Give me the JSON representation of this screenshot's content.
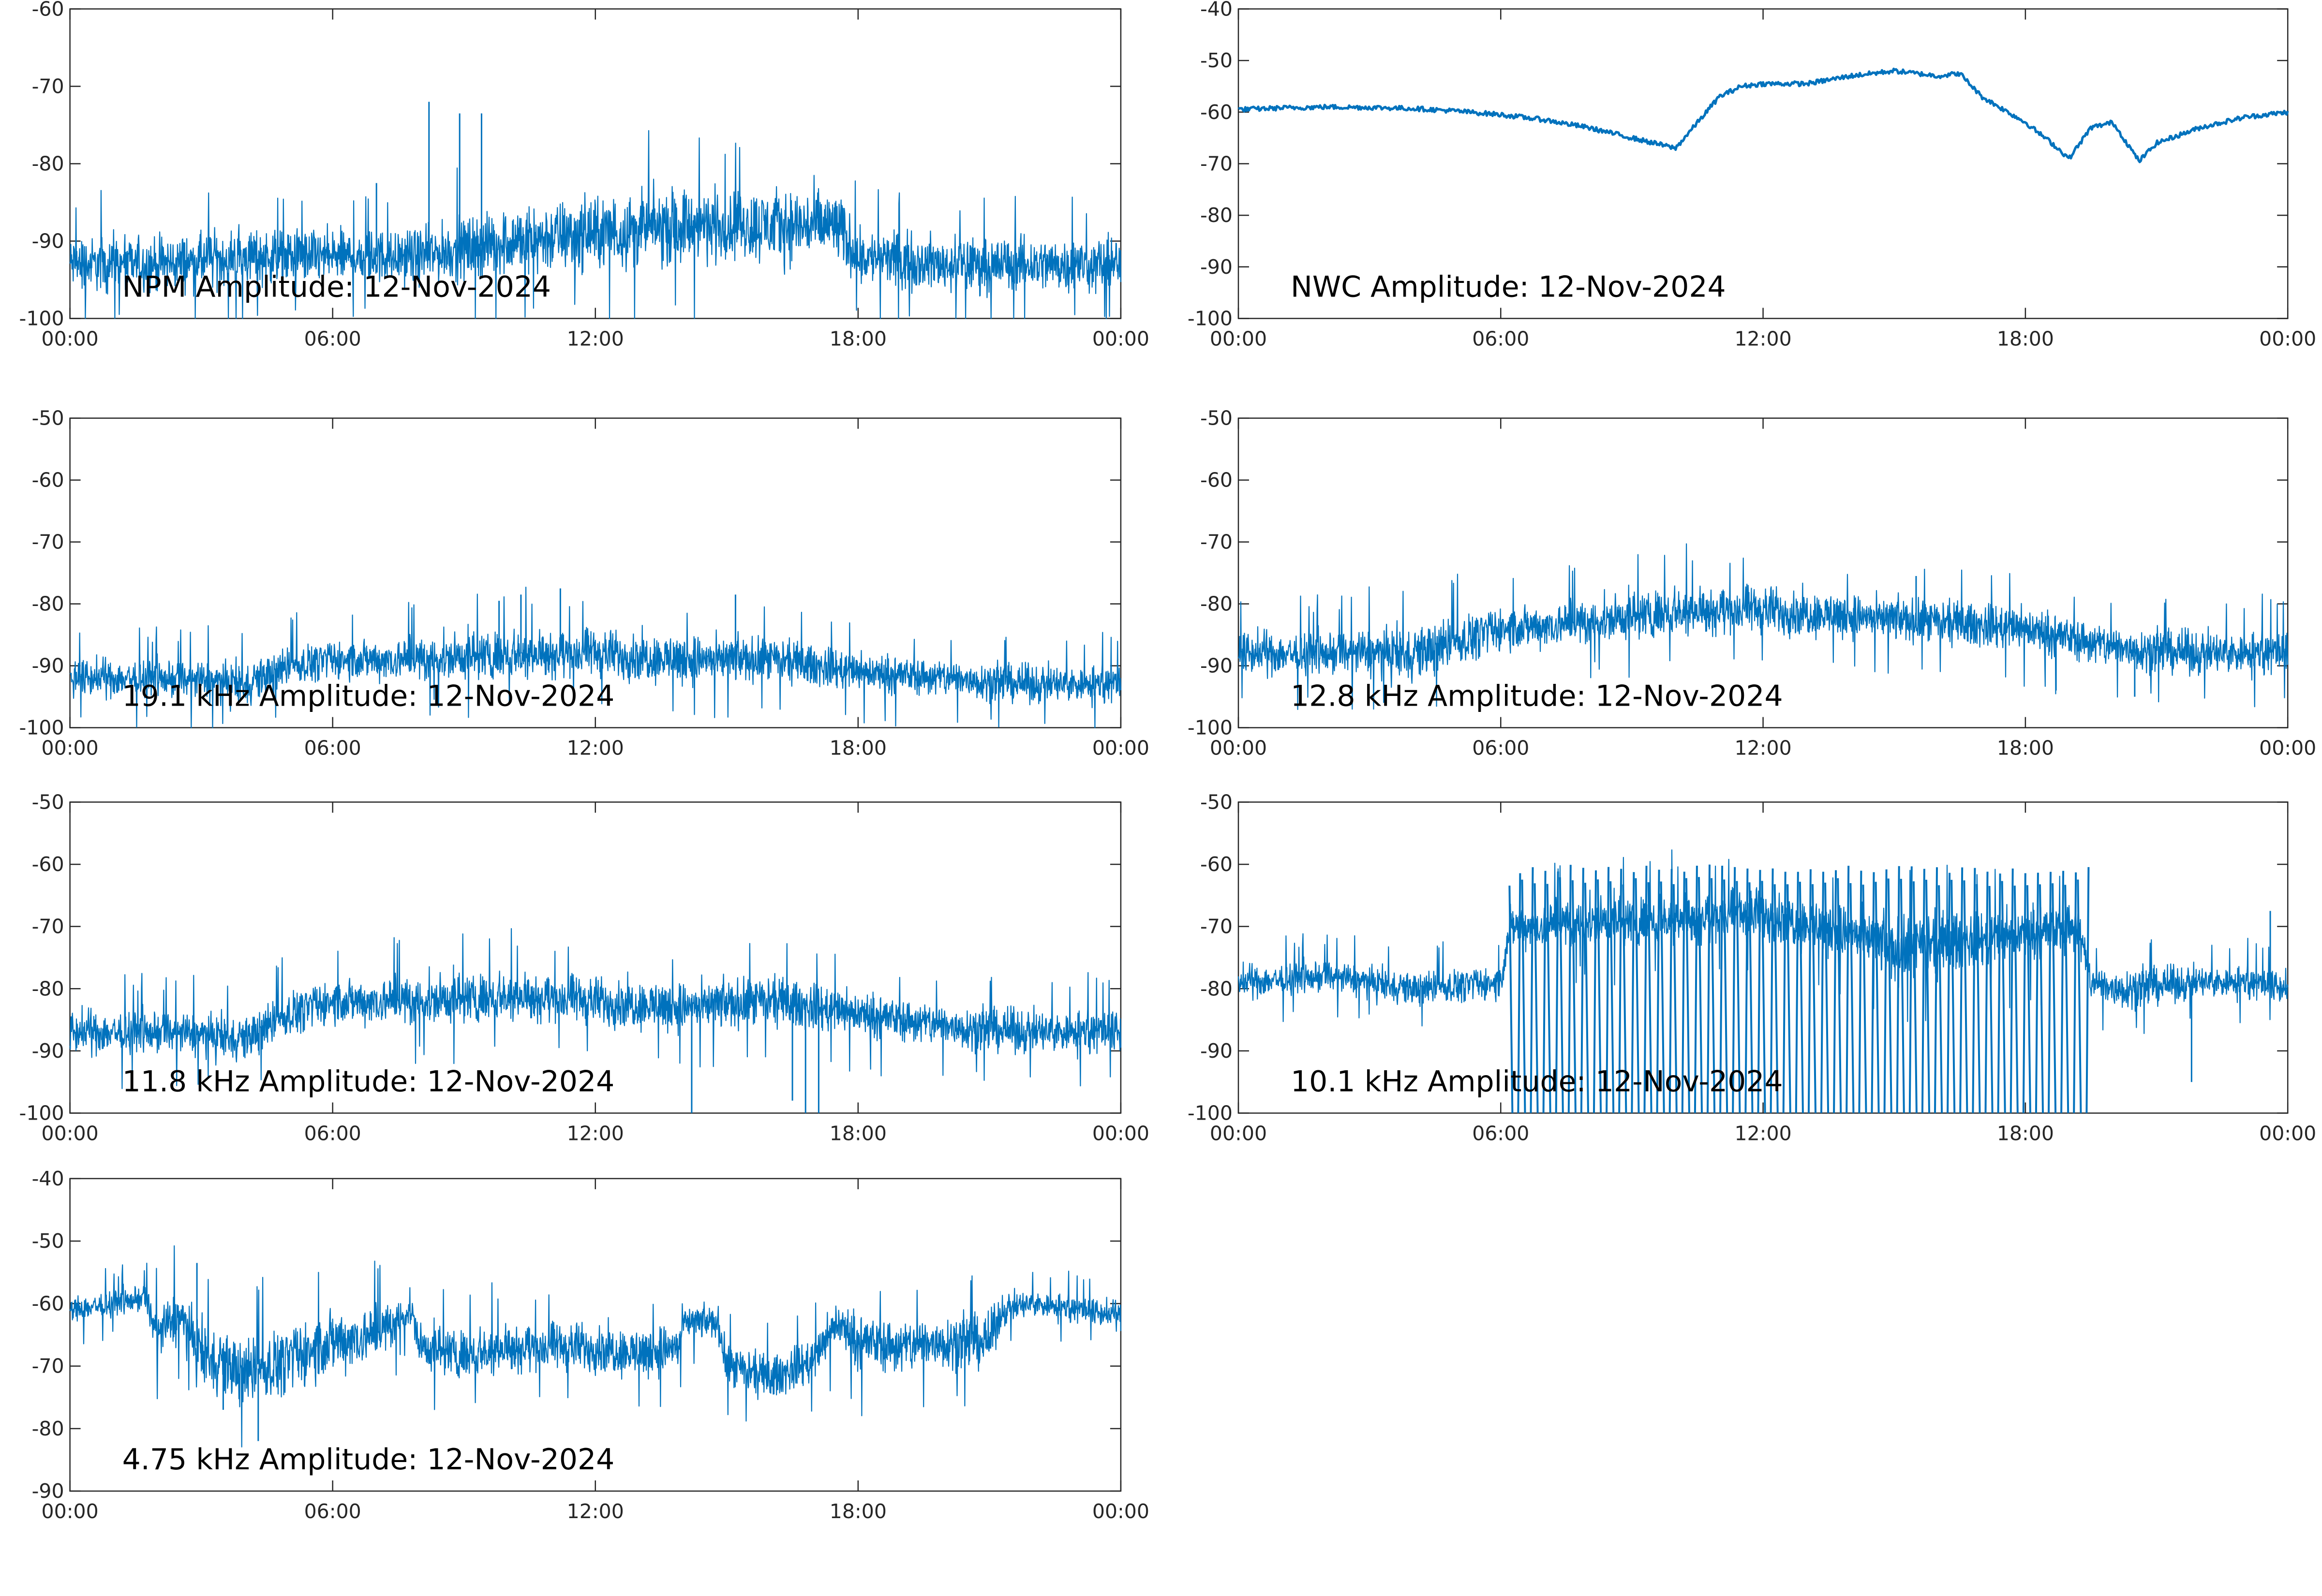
{
  "figure": {
    "series_color": "#0072BD"
  },
  "chart_data": [
    {
      "type": "line",
      "panel_label": "NPM Amplitude: 12-Nov-2024",
      "x_ticks": [
        "00:00",
        "06:00",
        "12:00",
        "18:00",
        "00:00"
      ],
      "y_ticks": [
        "-60",
        "-70",
        "-80",
        "-90",
        "-100"
      ],
      "xlim": [
        0,
        24
      ],
      "ylim": [
        -100,
        -60
      ],
      "x_unit": "hours",
      "noise": "heavy",
      "x": [
        0,
        2,
        4,
        6,
        7,
        8,
        9,
        10,
        12,
        14,
        16,
        17.5,
        18,
        20,
        22,
        24
      ],
      "y_center": [
        -93,
        -93,
        -92,
        -92,
        -92,
        -92,
        -91,
        -90,
        -89,
        -88,
        -88,
        -88,
        -92,
        -93,
        -93,
        -93
      ],
      "y_spread": [
        4,
        4,
        4,
        4,
        4,
        4,
        4.5,
        5,
        5.5,
        5.5,
        5.5,
        5.5,
        4,
        4,
        4,
        4
      ],
      "spikes": [
        [
          8.2,
          -72
        ],
        [
          8.9,
          -73.5
        ],
        [
          9.4,
          -73.5
        ],
        [
          7.0,
          -82.5
        ]
      ]
    },
    {
      "type": "line",
      "panel_label": "NWC Amplitude: 12-Nov-2024",
      "x_ticks": [
        "00:00",
        "06:00",
        "12:00",
        "18:00",
        "00:00"
      ],
      "y_ticks": [
        "-40",
        "-50",
        "-60",
        "-70",
        "-80",
        "-90",
        "-100"
      ],
      "xlim": [
        0,
        24
      ],
      "ylim": [
        -100,
        -40
      ],
      "x_unit": "hours",
      "noise": "light",
      "x": [
        0,
        1,
        2,
        3,
        4,
        5,
        6,
        7,
        8,
        9,
        9.5,
        10,
        10.5,
        11,
        11.5,
        12,
        13,
        14,
        15,
        16,
        16.5,
        17,
        18,
        18.6,
        19,
        19.5,
        20,
        20.6,
        21,
        22,
        23,
        24
      ],
      "y_center": [
        -59.5,
        -59.2,
        -59,
        -59.1,
        -59.3,
        -59.8,
        -60.5,
        -61.5,
        -63,
        -65,
        -66,
        -67,
        -62,
        -57,
        -55,
        -54.5,
        -54.5,
        -53,
        -52,
        -53,
        -52.5,
        -57,
        -62,
        -66,
        -69,
        -63,
        -62,
        -69.5,
        -66,
        -63,
        -61,
        -60
      ]
    },
    {
      "type": "line",
      "panel_label": "19.1 kHz Amplitude: 12-Nov-2024",
      "x_ticks": [
        "00:00",
        "06:00",
        "12:00",
        "18:00",
        "00:00"
      ],
      "y_ticks": [
        "-50",
        "-60",
        "-70",
        "-80",
        "-90",
        "-100"
      ],
      "xlim": [
        0,
        24
      ],
      "ylim": [
        -100,
        -50
      ],
      "x_unit": "hours",
      "noise": "heavy",
      "x": [
        0,
        2,
        4,
        5,
        6,
        8,
        10,
        12,
        14,
        16,
        18,
        20,
        22,
        24
      ],
      "y_center": [
        -92,
        -92,
        -93,
        -90,
        -89,
        -89,
        -88,
        -88,
        -89,
        -89,
        -91,
        -92,
        -93,
        -93
      ],
      "y_spread": [
        3.5,
        3.5,
        4,
        3.5,
        3.5,
        4,
        4.5,
        4.5,
        4.5,
        4,
        3.5,
        3.5,
        3.5,
        3.5
      ],
      "spikes": [
        [
          10.3,
          -78.5
        ],
        [
          11.2,
          -77.5
        ],
        [
          15.2,
          -78.5
        ],
        [
          9.8,
          -79.5
        ]
      ]
    },
    {
      "type": "line",
      "panel_label": "12.8 kHz Amplitude: 12-Nov-2024",
      "x_ticks": [
        "00:00",
        "06:00",
        "12:00",
        "18:00",
        "00:00"
      ],
      "y_ticks": [
        "-50",
        "-60",
        "-70",
        "-80",
        "-90",
        "-100"
      ],
      "xlim": [
        0,
        24
      ],
      "ylim": [
        -100,
        -50
      ],
      "x_unit": "hours",
      "noise": "heavy",
      "x": [
        0,
        2,
        4,
        5,
        6,
        8,
        10,
        12,
        14,
        16,
        18,
        20,
        22,
        24
      ],
      "y_center": [
        -88,
        -88,
        -88,
        -86,
        -84,
        -83,
        -81,
        -81,
        -82,
        -83,
        -84,
        -87,
        -88,
        -88
      ],
      "y_spread": [
        4,
        4,
        5,
        4.5,
        4,
        4,
        4.5,
        4.5,
        4,
        4,
        4,
        4,
        4,
        4
      ],
      "spikes": [
        [
          15.5,
          -75.5
        ],
        [
          18.7,
          -94
        ],
        [
          20.5,
          -95
        ]
      ]
    },
    {
      "type": "line",
      "panel_label": "11.8 kHz Amplitude: 12-Nov-2024",
      "x_ticks": [
        "00:00",
        "06:00",
        "12:00",
        "18:00",
        "00:00"
      ],
      "y_ticks": [
        "-50",
        "-60",
        "-70",
        "-80",
        "-90",
        "-100"
      ],
      "xlim": [
        0,
        24
      ],
      "ylim": [
        -100,
        -50
      ],
      "x_unit": "hours",
      "noise": "heavy",
      "x": [
        0,
        2,
        4,
        5,
        6,
        8,
        10,
        12,
        14,
        16,
        18,
        20,
        22,
        24
      ],
      "y_center": [
        -87,
        -87,
        -88,
        -84,
        -82,
        -82,
        -81,
        -82,
        -83,
        -82,
        -84,
        -86,
        -87,
        -87
      ],
      "y_spread": [
        4,
        4,
        4,
        4,
        4,
        4.5,
        4.5,
        4.5,
        4.5,
        4.5,
        4,
        4,
        4,
        4
      ],
      "spikes": [
        [
          14.2,
          -100
        ],
        [
          16.8,
          -100
        ],
        [
          16.5,
          -98
        ],
        [
          17.1,
          -100
        ]
      ]
    },
    {
      "type": "line",
      "panel_label": "10.1 kHz Amplitude: 12-Nov-2024",
      "x_ticks": [
        "00:00",
        "06:00",
        "12:00",
        "18:00",
        "00:00"
      ],
      "y_ticks": [
        "-50",
        "-60",
        "-70",
        "-80",
        "-90",
        "-100"
      ],
      "xlim": [
        0,
        24
      ],
      "ylim": [
        -100,
        -50
      ],
      "x_unit": "hours",
      "noise": "heavy",
      "x": [
        0,
        2,
        4,
        6,
        6.2,
        12,
        14.5,
        15,
        16,
        17,
        19.2,
        19.5,
        20,
        22,
        23,
        24
      ],
      "y_center": [
        -79,
        -78,
        -80,
        -79,
        -70,
        -68,
        -72,
        -74,
        -73,
        -72,
        -70,
        -79,
        -80,
        -79,
        -79,
        -80
      ],
      "y_spread": [
        3,
        3,
        3,
        3,
        4,
        5,
        5,
        6,
        6,
        5,
        5,
        3,
        4,
        3,
        3,
        3
      ],
      "bursts": {
        "start": 6.2,
        "end": 19.2,
        "count": 46,
        "top": -63,
        "bottom": -100
      },
      "spikes": [
        [
          23.6,
          -67.5
        ],
        [
          21.8,
          -95
        ]
      ]
    },
    {
      "type": "line",
      "panel_label": "4.75 kHz Amplitude: 12-Nov-2024",
      "x_ticks": [
        "00:00",
        "06:00",
        "12:00",
        "18:00",
        "00:00"
      ],
      "y_ticks": [
        "-40",
        "-50",
        "-60",
        "-70",
        "-80",
        "-90"
      ],
      "xlim": [
        0,
        24
      ],
      "ylim": [
        -90,
        -40
      ],
      "x_unit": "hours",
      "noise": "heavy",
      "x": [
        0,
        1,
        1.7,
        2,
        2.5,
        3,
        4,
        5,
        6,
        7,
        7.8,
        8,
        9,
        10,
        11,
        12,
        13,
        13.9,
        14,
        14.8,
        15,
        16,
        17,
        17.5,
        18,
        19,
        20,
        21,
        21.3,
        22,
        23,
        24
      ],
      "y_center": [
        -61,
        -60,
        -59,
        -65,
        -62,
        -68,
        -71,
        -69,
        -66,
        -65,
        -61,
        -67,
        -68,
        -67,
        -67,
        -67,
        -68,
        -67,
        -63,
        -63,
        -70,
        -72,
        -69,
        -63,
        -66,
        -67,
        -66,
        -66,
        -61,
        -60,
        -61,
        -62
      ],
      "y_spread": [
        2.5,
        2.5,
        2.5,
        5,
        5,
        6,
        6,
        6,
        6,
        5,
        3,
        4,
        4.5,
        4.5,
        4.5,
        4.5,
        4.5,
        4.5,
        3,
        3,
        4,
        4,
        4,
        4,
        5,
        5,
        5,
        5,
        3,
        2.5,
        2.5,
        2.5
      ],
      "spikes": [
        [
          4.3,
          -82
        ],
        [
          2.9,
          -53.5
        ],
        [
          3.5,
          -77
        ]
      ]
    }
  ]
}
